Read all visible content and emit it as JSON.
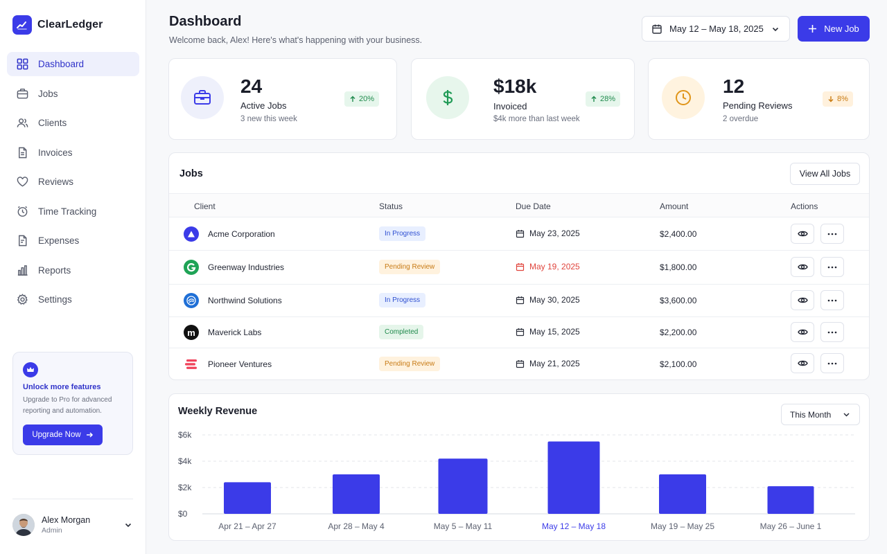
{
  "app": {
    "name": "ClearLedger"
  },
  "sidebar": {
    "items": [
      {
        "label": "Dashboard",
        "icon": "grid-icon",
        "active": true
      },
      {
        "label": "Jobs",
        "icon": "briefcase-icon"
      },
      {
        "label": "Clients",
        "icon": "users-icon"
      },
      {
        "label": "Invoices",
        "icon": "file-icon"
      },
      {
        "label": "Reviews",
        "icon": "heart-icon"
      },
      {
        "label": "Time Tracking",
        "icon": "clock-icon"
      },
      {
        "label": "Expenses",
        "icon": "receipt-icon"
      },
      {
        "label": "Reports",
        "icon": "bar-chart-icon"
      },
      {
        "label": "Settings",
        "icon": "gear-icon"
      }
    ],
    "promo": {
      "title": "Unlock more features",
      "text": "Upgrade to Pro for advanced reporting and automation.",
      "button": "Upgrade Now"
    },
    "user": {
      "name": "Alex Morgan",
      "role": "Admin"
    }
  },
  "header": {
    "title": "Dashboard",
    "subtitle": "Welcome back, Alex! Here's what's happening with your business.",
    "date_range": "May 12 – May 18, 2025",
    "new_job": "New Job"
  },
  "stats": [
    {
      "value": "24",
      "label": "Active Jobs",
      "sub": "3 new this week",
      "change": "20%",
      "direction": "up",
      "color": "#3b3be8"
    },
    {
      "value": "$18k",
      "label": "Invoiced",
      "sub": "$4k more than last week",
      "change": "28%",
      "direction": "up",
      "color": "#1f9a55"
    },
    {
      "value": "12",
      "label": "Pending Reviews",
      "sub": "2 overdue",
      "change": "8%",
      "direction": "down",
      "color": "#e0951a"
    }
  ],
  "jobs": {
    "title": "Jobs",
    "view_all": "View All Jobs",
    "columns": [
      "Client",
      "Status",
      "Due Date",
      "Amount",
      "Actions"
    ],
    "rows": [
      {
        "client": "Acme Corporation",
        "status": "In Progress",
        "status_type": "progress",
        "due": "May 23, 2025",
        "overdue": false,
        "amount": "$2,400.00"
      },
      {
        "client": "Greenway Industries",
        "status": "Pending Review",
        "status_type": "pending",
        "due": "May 19, 2025",
        "overdue": true,
        "amount": "$1,800.00"
      },
      {
        "client": "Northwind Solutions",
        "status": "In Progress",
        "status_type": "progress",
        "due": "May 30, 2025",
        "overdue": false,
        "amount": "$3,600.00"
      },
      {
        "client": "Maverick Labs",
        "status": "Completed",
        "status_type": "done",
        "due": "May 15, 2025",
        "overdue": false,
        "amount": "$2,200.00"
      },
      {
        "client": "Pioneer Ventures",
        "status": "Pending Review",
        "status_type": "pending",
        "due": "May 21, 2025",
        "overdue": false,
        "amount": "$2,100.00"
      }
    ]
  },
  "revenue": {
    "title": "Weekly Revenue",
    "period": "This Month"
  },
  "chart_data": {
    "type": "bar",
    "title": "Weekly Revenue",
    "categories": [
      "Apr 21 – Apr 27",
      "Apr 28 – May 4",
      "May 5 – May 11",
      "May 12 – May 18",
      "May 19 – May 25",
      "May 26 – June 1"
    ],
    "values": [
      2400,
      3000,
      4200,
      5500,
      3000,
      2100
    ],
    "highlight_category": "May 12 – May 18",
    "ylim": [
      0,
      6000
    ],
    "yticks": [
      "$0",
      "$2k",
      "$4k",
      "$6k"
    ],
    "ytick_values": [
      0,
      2000,
      4000,
      6000
    ],
    "bar_color": "#3b3be8",
    "grid": true
  }
}
